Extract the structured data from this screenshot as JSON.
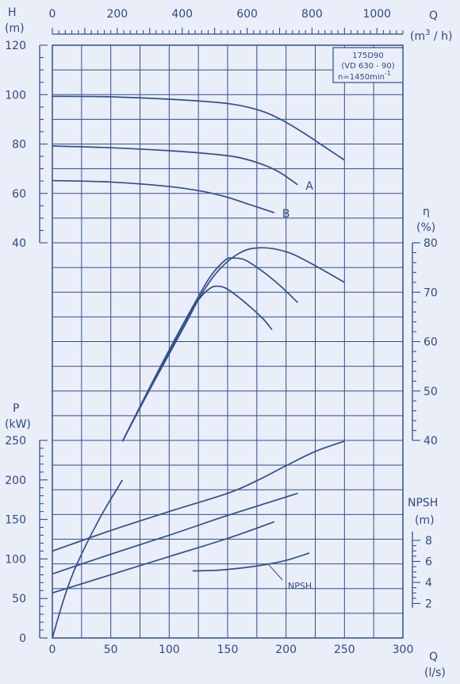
{
  "chart_data": {
    "type": "line",
    "colors": {
      "background": "#e9eef8",
      "ink": "#324f8e"
    },
    "grid": true,
    "info_box": {
      "model": "175D90",
      "variant": "(VD 630 - 90)",
      "speed": "n=1450min",
      "speed_exp": "-1"
    },
    "x_axis_bottom": {
      "label_q": "Q",
      "label_unit": "(l/s)",
      "range": [
        0,
        300
      ],
      "ticks": [
        "0",
        "50",
        "100",
        "150",
        "200",
        "250",
        "300"
      ]
    },
    "x_axis_top": {
      "label_q": "Q",
      "label_unit_pre": "(m",
      "label_unit_exp": "3",
      "label_unit_post": " / h)",
      "range": [
        0,
        1080
      ],
      "ticks": [
        "0",
        "200",
        "400",
        "600",
        "800",
        "1000"
      ]
    },
    "head_axis": {
      "label": "H",
      "unit": "(m)",
      "range": [
        40,
        120
      ],
      "ticks": [
        "120",
        "100",
        "80",
        "60",
        "40"
      ]
    },
    "efficiency_axis": {
      "label": "η",
      "unit": "(%)",
      "range": [
        40,
        80
      ],
      "ticks": [
        "80",
        "70",
        "60",
        "50",
        "40"
      ]
    },
    "power_axis": {
      "label": "P",
      "unit": "(kW)",
      "range": [
        0,
        250
      ],
      "ticks": [
        "250",
        "200",
        "150",
        "100",
        "50",
        "0"
      ]
    },
    "npsh_axis": {
      "label": "NPSH",
      "unit": "(m)",
      "range": [
        2,
        8
      ],
      "ticks": [
        "8",
        "6",
        "4",
        "2"
      ]
    },
    "head_curves": [
      {
        "name": "",
        "points": [
          [
            0,
            99.3
          ],
          [
            40,
            99.2
          ],
          [
            80,
            98.6
          ],
          [
            120,
            97.6
          ],
          [
            150,
            96.4
          ],
          [
            170,
            94.6
          ],
          [
            185,
            92.3
          ],
          [
            200,
            88.8
          ],
          [
            215,
            84.5
          ],
          [
            230,
            79.8
          ],
          [
            250,
            73.5
          ]
        ]
      },
      {
        "name": "A",
        "points": [
          [
            0,
            79.2
          ],
          [
            50,
            78.5
          ],
          [
            100,
            77.3
          ],
          [
            140,
            75.8
          ],
          [
            160,
            74.5
          ],
          [
            180,
            71.7
          ],
          [
            195,
            68.4
          ],
          [
            210,
            63.5
          ]
        ]
      },
      {
        "name": "B",
        "points": [
          [
            0,
            65.2
          ],
          [
            50,
            64.6
          ],
          [
            100,
            62.8
          ],
          [
            130,
            60.7
          ],
          [
            150,
            58.4
          ],
          [
            170,
            55.3
          ],
          [
            190,
            52.2
          ]
        ]
      }
    ],
    "efficiency_curves": [
      {
        "name": "",
        "points": [
          [
            60,
            39.8
          ],
          [
            80,
            49
          ],
          [
            100,
            58
          ],
          [
            120,
            66.6
          ],
          [
            140,
            73.8
          ],
          [
            160,
            77.9
          ],
          [
            178,
            79
          ],
          [
            200,
            78.2
          ],
          [
            220,
            76
          ],
          [
            250,
            72
          ]
        ]
      },
      {
        "name": "A",
        "points": [
          [
            60,
            39.8
          ],
          [
            80,
            49.2
          ],
          [
            100,
            58.3
          ],
          [
            120,
            67
          ],
          [
            135,
            73.1
          ],
          [
            148,
            76.5
          ],
          [
            155,
            76.9
          ],
          [
            165,
            76.5
          ],
          [
            180,
            74.2
          ],
          [
            195,
            71.3
          ],
          [
            210,
            67.9
          ]
        ]
      },
      {
        "name": "B",
        "points": [
          [
            60,
            39.8
          ],
          [
            80,
            48.8
          ],
          [
            100,
            57.5
          ],
          [
            115,
            64
          ],
          [
            125,
            68.4
          ],
          [
            135,
            70.8
          ],
          [
            142,
            71.2
          ],
          [
            150,
            70.6
          ],
          [
            165,
            67.9
          ],
          [
            180,
            64.7
          ],
          [
            188,
            62.4
          ]
        ]
      }
    ],
    "power_curves": [
      {
        "name": "",
        "points": [
          [
            0,
            110
          ],
          [
            50,
            136
          ],
          [
            100,
            160
          ],
          [
            150,
            183
          ],
          [
            175,
            199
          ],
          [
            200,
            218
          ],
          [
            225,
            236
          ],
          [
            250,
            249
          ]
        ]
      },
      {
        "name": "A",
        "points": [
          [
            0,
            81
          ],
          [
            50,
            106
          ],
          [
            100,
            130
          ],
          [
            150,
            155
          ],
          [
            210,
            183
          ]
        ]
      },
      {
        "name": "B",
        "points": [
          [
            0,
            57
          ],
          [
            50,
            80
          ],
          [
            100,
            103
          ],
          [
            150,
            126
          ],
          [
            190,
            147
          ]
        ]
      }
    ],
    "npsh_curve": {
      "label": "NPSH",
      "points": [
        [
          120,
          5.1
        ],
        [
          140,
          5.15
        ],
        [
          160,
          5.35
        ],
        [
          180,
          5.65
        ],
        [
          200,
          6.1
        ],
        [
          220,
          6.8
        ]
      ]
    },
    "zero_flow_rise": [
      [
        0,
        0
      ],
      [
        10,
        50
      ],
      [
        20,
        90
      ],
      [
        40,
        150
      ],
      [
        60,
        200
      ]
    ]
  }
}
